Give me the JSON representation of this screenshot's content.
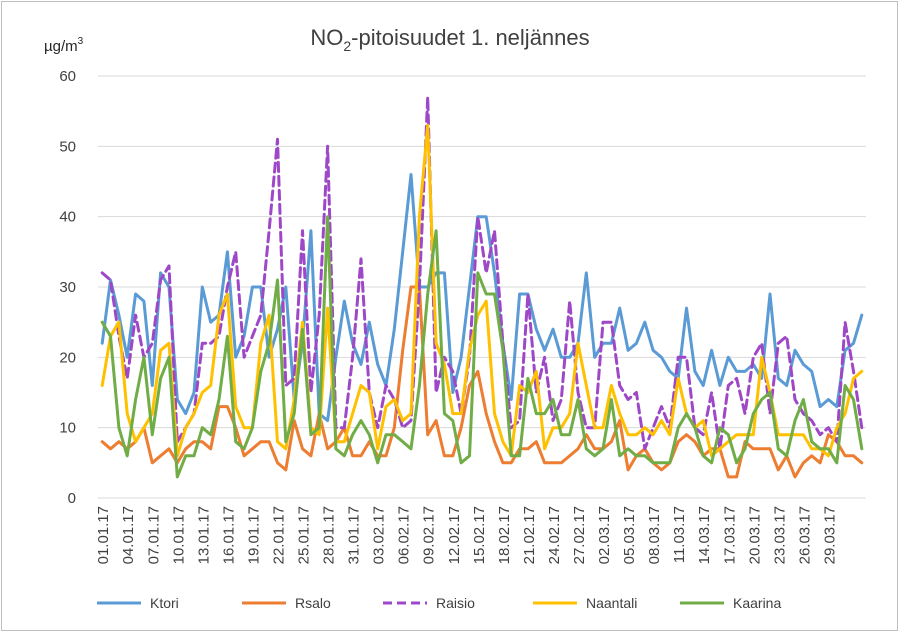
{
  "chart_data": {
    "type": "line",
    "title_main": "NO",
    "title_sub": "2",
    "title_rest": "-pitoisuudet 1. neljännes",
    "ylabel_main": "µg/m",
    "ylabel_sup": "3",
    "ylim": [
      0,
      60
    ],
    "yticks": [
      0,
      10,
      20,
      30,
      40,
      50,
      60
    ],
    "grid": true,
    "legend_position": "bottom",
    "x_tick_labels": [
      "01.01.17",
      "04.01.17",
      "07.01.17",
      "10.01.17",
      "13.01.17",
      "16.01.17",
      "19.01.17",
      "22.01.17",
      "25.01.17",
      "28.01.17",
      "31.01.17",
      "03.02.17",
      "06.02.17",
      "09.02.17",
      "12.02.17",
      "15.02.17",
      "18.02.17",
      "21.02.17",
      "24.02.17",
      "27.02.17",
      "02.03.17",
      "05.03.17",
      "08.03.17",
      "11.03.17",
      "14.03.17",
      "17.03.17",
      "20.03.17",
      "23.03.17",
      "26.03.17",
      "29.03.17"
    ],
    "series": [
      {
        "name": "Ktori",
        "color": "#5b9bd5",
        "dash": false,
        "values": [
          22,
          31,
          26,
          20,
          29,
          28,
          16,
          32,
          30,
          14,
          12,
          15,
          30,
          25,
          26,
          35,
          20,
          23,
          30,
          30,
          20,
          24,
          30,
          14,
          22,
          38,
          12,
          11,
          20,
          28,
          22,
          19,
          25,
          19,
          16,
          24,
          35,
          46,
          30,
          30,
          32,
          32,
          15,
          20,
          30,
          40,
          40,
          32,
          22,
          14,
          29,
          29,
          24,
          21,
          24,
          20,
          20,
          22,
          32,
          20,
          22,
          22,
          27,
          21,
          22,
          25,
          21,
          20,
          18,
          17,
          27,
          18,
          16,
          21,
          16,
          20,
          18,
          18,
          19,
          17,
          29,
          17,
          16,
          21,
          19,
          18,
          13,
          14,
          13,
          21,
          22,
          26
        ]
      },
      {
        "name": "Rsalo",
        "color": "#ed7d31",
        "dash": false,
        "values": [
          8,
          7,
          8,
          7,
          8,
          10,
          5,
          6,
          7,
          5,
          7,
          8,
          8,
          7,
          13,
          13,
          10,
          6,
          7,
          8,
          8,
          5,
          4,
          11,
          7,
          6,
          12,
          7,
          8,
          10,
          6,
          6,
          8,
          6,
          6,
          10,
          21,
          30,
          30,
          9,
          11,
          6,
          6,
          10,
          16,
          18,
          12,
          8,
          5,
          5,
          7,
          7,
          8,
          5,
          5,
          5,
          6,
          7,
          9,
          7,
          7,
          8,
          11,
          4,
          6,
          7,
          5,
          4,
          5,
          8,
          9,
          8,
          6,
          7,
          7,
          3,
          3,
          8,
          7,
          7,
          7,
          4,
          6,
          3,
          5,
          6,
          5,
          9,
          8,
          6,
          6,
          5
        ]
      },
      {
        "name": "Raisio",
        "color": "#9e48c8",
        "dash": true,
        "values": [
          32,
          31,
          23,
          17,
          26,
          20,
          22,
          31,
          33,
          8,
          10,
          12,
          22,
          22,
          23,
          30,
          35,
          20,
          23,
          26,
          38,
          51,
          16,
          17,
          38,
          15,
          26,
          50,
          10,
          10,
          20,
          34,
          15,
          10,
          16,
          14,
          10,
          11,
          30,
          57,
          15,
          20,
          18,
          12,
          20,
          40,
          32,
          38,
          22,
          10,
          11,
          29,
          15,
          20,
          11,
          14,
          28,
          15,
          10,
          10,
          25,
          25,
          16,
          14,
          15,
          7,
          10,
          13,
          10,
          20,
          20,
          10,
          9,
          15,
          7,
          16,
          17,
          12,
          20,
          22,
          12,
          22,
          23,
          14,
          12,
          11,
          9,
          10,
          8,
          25,
          18,
          10
        ]
      },
      {
        "name": "Naantali",
        "color": "#ffc000",
        "dash": false,
        "values": [
          16,
          23,
          25,
          12,
          8,
          10,
          12,
          21,
          22,
          6,
          10,
          12,
          15,
          16,
          26,
          29,
          13,
          10,
          10,
          22,
          26,
          8,
          7,
          14,
          25,
          10,
          9,
          27,
          8,
          8,
          12,
          16,
          15,
          7,
          13,
          14,
          11,
          12,
          40,
          53,
          22,
          19,
          12,
          12,
          21,
          26,
          28,
          12,
          8,
          6,
          16,
          15,
          18,
          7,
          10,
          10,
          12,
          22,
          16,
          10,
          10,
          16,
          12,
          9,
          9,
          10,
          9,
          11,
          9,
          17,
          12,
          10,
          11,
          6,
          7,
          8,
          9,
          9,
          9,
          20,
          15,
          9,
          9,
          9,
          9,
          7,
          7,
          6,
          10,
          12,
          17,
          18
        ]
      },
      {
        "name": "Kaarina",
        "color": "#70ad47",
        "dash": false,
        "values": [
          25,
          23,
          10,
          6,
          14,
          20,
          9,
          17,
          20,
          3,
          6,
          6,
          10,
          9,
          14,
          23,
          8,
          7,
          10,
          18,
          22,
          31,
          8,
          12,
          24,
          9,
          10,
          40,
          7,
          6,
          9,
          11,
          9,
          5,
          9,
          9,
          8,
          7,
          16,
          29,
          38,
          12,
          11,
          5,
          6,
          32,
          29,
          29,
          21,
          6,
          6,
          17,
          12,
          12,
          14,
          9,
          9,
          14,
          7,
          6,
          7,
          14,
          6,
          7,
          6,
          6,
          5,
          5,
          5,
          10,
          12,
          10,
          6,
          5,
          10,
          9,
          5,
          7,
          12,
          14,
          15,
          7,
          6,
          11,
          14,
          8,
          7,
          7,
          5,
          16,
          14,
          7
        ]
      }
    ]
  }
}
